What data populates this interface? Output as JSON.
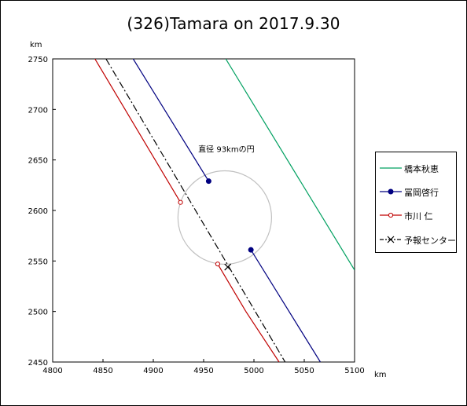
{
  "title": "(326)Tamara on 2017.9.30",
  "chart_data": {
    "type": "line",
    "title": "(326)Tamara on 2017.9.30",
    "x_unit": "km",
    "y_unit": "km",
    "xlim": [
      4800,
      5100
    ],
    "ylim": [
      2450,
      2750
    ],
    "x_ticks": [
      4800,
      4850,
      4900,
      4950,
      5000,
      5050,
      5100
    ],
    "y_ticks": [
      2450,
      2500,
      2550,
      2600,
      2650,
      2700,
      2750
    ],
    "grid": false,
    "legend_position": "right",
    "circle": {
      "label": "直径 93kmの円",
      "center": [
        4971,
        2593
      ],
      "diameter": 93,
      "color": "#c0c0c0"
    },
    "series": [
      {
        "name": "橋本秋恵",
        "color": "#00a060",
        "marker": "none",
        "dash": "solid",
        "x": [
          4972,
          5100
        ],
        "y": [
          2750,
          2541
        ]
      },
      {
        "name": "冨岡啓行",
        "color": "#000080",
        "marker": "filled-circle",
        "dash": "solid",
        "segments": [
          {
            "x": [
              4880,
              4955
            ],
            "y": [
              2750,
              2629
            ]
          },
          {
            "x": [
              4997,
              5066
            ],
            "y": [
              2561,
              2450
            ]
          }
        ]
      },
      {
        "name": "市川 仁",
        "color": "#c00000",
        "marker": "open-circle",
        "dash": "solid",
        "segments": [
          {
            "x": [
              4842,
              4927
            ],
            "y": [
              2750,
              2608
            ]
          },
          {
            "x": [
              4964,
              4992
            ],
            "y": [
              2547,
              2500
            ]
          },
          {
            "x": [
              4992,
              5025
            ],
            "y": [
              2500,
              2450
            ]
          }
        ]
      },
      {
        "name": "予報センター",
        "color": "#000000",
        "marker": "x",
        "dash": "dashdot",
        "x": [
          4853,
          5031
        ],
        "y": [
          2750,
          2450
        ],
        "point": [
          4974,
          2544
        ]
      }
    ]
  }
}
